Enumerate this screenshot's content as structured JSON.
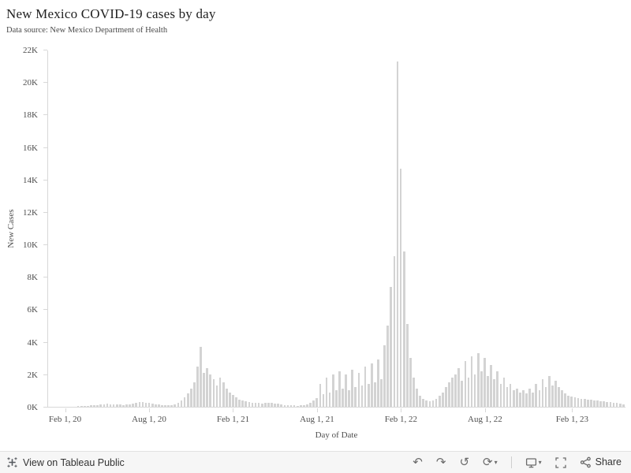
{
  "header": {
    "title": "New Mexico COVID-19 cases by day",
    "subtitle": "Data source: New Mexico Department of Health"
  },
  "chart_data": {
    "type": "bar",
    "title": "New Mexico COVID-19 cases by day",
    "xlabel": "Day of Date",
    "ylabel": "New Cases",
    "ylim": [
      0,
      22000
    ],
    "bar_color": "#d3d3d3",
    "grid": false,
    "sampling": "weekly estimates, Jan 2020 - May 2023",
    "y_ticks": [
      "0K",
      "2K",
      "4K",
      "6K",
      "8K",
      "10K",
      "12K",
      "14K",
      "16K",
      "18K",
      "20K",
      "22K"
    ],
    "x_ticks": [
      {
        "label": "Feb 1, 20",
        "index": 5
      },
      {
        "label": "Aug 1, 20",
        "index": 31
      },
      {
        "label": "Feb 1, 21",
        "index": 57
      },
      {
        "label": "Aug 1, 21",
        "index": 83
      },
      {
        "label": "Feb 1, 22",
        "index": 109
      },
      {
        "label": "Aug 1, 22",
        "index": 135
      },
      {
        "label": "Feb 1, 23",
        "index": 162
      }
    ],
    "values": [
      0,
      0,
      0,
      0,
      0,
      0,
      0,
      0,
      0,
      5,
      10,
      25,
      50,
      80,
      100,
      120,
      140,
      160,
      180,
      160,
      150,
      140,
      130,
      120,
      130,
      150,
      180,
      220,
      280,
      300,
      260,
      220,
      180,
      150,
      130,
      120,
      110,
      100,
      120,
      160,
      250,
      400,
      600,
      850,
      1100,
      1500,
      2500,
      3700,
      2100,
      2400,
      2000,
      1700,
      1300,
      1800,
      1500,
      1100,
      900,
      750,
      600,
      450,
      400,
      350,
      300,
      250,
      230,
      220,
      200,
      230,
      250,
      220,
      200,
      180,
      150,
      120,
      100,
      90,
      80,
      70,
      80,
      100,
      150,
      250,
      400,
      550,
      1400,
      800,
      1800,
      900,
      2000,
      1000,
      2200,
      1100,
      2000,
      1000,
      2300,
      1200,
      2100,
      1300,
      2500,
      1400,
      2700,
      1500,
      2900,
      1700,
      3800,
      5000,
      7400,
      9300,
      21300,
      14700,
      9600,
      5100,
      3000,
      1800,
      1100,
      700,
      500,
      400,
      350,
      400,
      500,
      700,
      900,
      1200,
      1500,
      1800,
      2000,
      2400,
      1600,
      2800,
      1800,
      3100,
      2000,
      3300,
      2200,
      3000,
      1900,
      2600,
      1700,
      2200,
      1400,
      1800,
      1200,
      1400,
      1000,
      1100,
      900,
      1000,
      850,
      1100,
      900,
      1400,
      1000,
      1700,
      1200,
      1900,
      1300,
      1600,
      1200,
      1000,
      850,
      700,
      650,
      600,
      550,
      500,
      480,
      450,
      420,
      400,
      380,
      350,
      320,
      300,
      280,
      250,
      220,
      180,
      150
    ]
  },
  "toolbar": {
    "view_label": "View on Tableau Public",
    "share_label": "Share",
    "icons": {
      "undo": "↶",
      "redo": "↷",
      "reset": "↺",
      "replay": "⟳",
      "caret": "▾"
    }
  }
}
